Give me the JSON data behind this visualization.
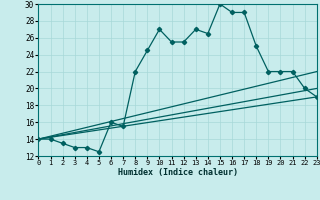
{
  "xlabel": "Humidex (Indice chaleur)",
  "bg_color": "#c8ecec",
  "line_color": "#006060",
  "grid_color": "#a8d8d8",
  "x_min": 0,
  "x_max": 23,
  "y_min": 12,
  "y_max": 30,
  "x_ticks": [
    0,
    1,
    2,
    3,
    4,
    5,
    6,
    7,
    8,
    9,
    10,
    11,
    12,
    13,
    14,
    15,
    16,
    17,
    18,
    19,
    20,
    21,
    22,
    23
  ],
  "y_ticks": [
    12,
    14,
    16,
    18,
    20,
    22,
    24,
    26,
    28,
    30
  ],
  "series1_x": [
    0,
    1,
    2,
    3,
    4,
    5,
    6,
    7,
    8,
    9,
    10,
    11,
    12,
    13,
    14,
    15,
    16,
    17,
    18,
    19,
    20,
    21,
    22,
    23
  ],
  "series1_y": [
    14,
    14,
    13.5,
    13,
    13,
    12.5,
    16,
    15.5,
    22,
    24.5,
    27,
    25.5,
    25.5,
    27,
    26.5,
    30,
    29,
    29,
    25,
    22,
    22,
    22,
    20,
    19
  ],
  "series2_x": [
    0,
    23
  ],
  "series2_y": [
    14,
    19
  ],
  "series3_x": [
    0,
    23
  ],
  "series3_y": [
    14,
    20
  ],
  "series4_x": [
    0,
    23
  ],
  "series4_y": [
    14,
    22
  ]
}
